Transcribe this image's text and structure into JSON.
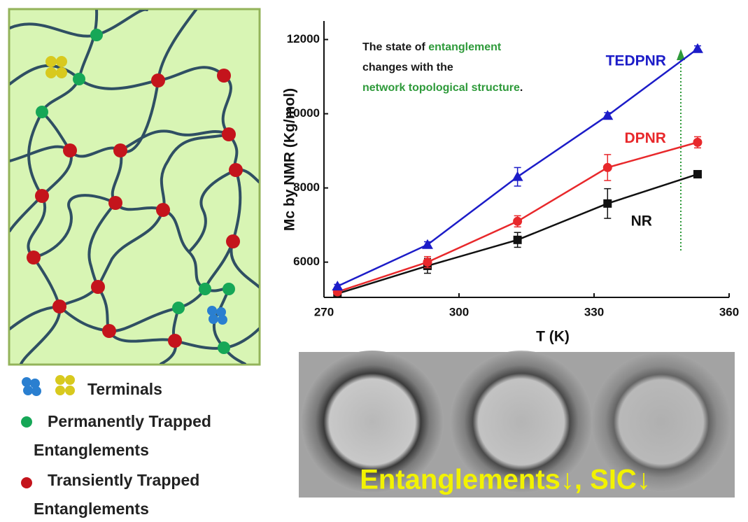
{
  "chart_data": {
    "type": "line",
    "x_label": "T (K)",
    "y_label": "Mc by NMR (Kg/mol)",
    "x": [
      273,
      293,
      313,
      333,
      353
    ],
    "xlim": [
      270,
      360
    ],
    "xticks": [
      270,
      300,
      330,
      360
    ],
    "ylim": [
      5050,
      12500
    ],
    "yticks": [
      6000,
      8000,
      10000,
      12000
    ],
    "series": [
      {
        "name": "NR",
        "color": "#111111",
        "label_color": "#111111",
        "marker": "square",
        "values": [
          5150,
          5900,
          6600,
          7580,
          8370
        ],
        "errors": [
          50,
          200,
          200,
          400,
          80
        ]
      },
      {
        "name": "DPNR",
        "color": "#e8282b",
        "label_color": "#e8282b",
        "marker": "circle",
        "values": [
          5200,
          6000,
          7100,
          8550,
          9230
        ],
        "errors": [
          50,
          150,
          150,
          350,
          150
        ]
      },
      {
        "name": "TEDPNR",
        "color": "#1c1cc8",
        "label_color": "#1c1cc8",
        "marker": "triangle",
        "values": [
          5350,
          6470,
          8300,
          9950,
          11750
        ],
        "errors": [
          50,
          80,
          250,
          80,
          80
        ]
      }
    ],
    "annotation": [
      [
        {
          "text": "The state of ",
          "color": "#1a1a1a"
        },
        {
          "text": "entanglement",
          "color": "#2e9a3a"
        }
      ],
      [
        {
          "text": "changes with the",
          "color": "#1a1a1a"
        }
      ],
      [
        {
          "text": "network topological structure",
          "color": "#2e9a3a"
        },
        {
          "text": ".",
          "color": "#1a1a1a"
        }
      ]
    ]
  },
  "diagram": {
    "legend": [
      "Terminals",
      "Permanently Trapped",
      "Entanglements",
      "Transiently Trapped",
      "Entanglements"
    ]
  },
  "image": {
    "caption": "Entanglements↓, SIC↓"
  }
}
